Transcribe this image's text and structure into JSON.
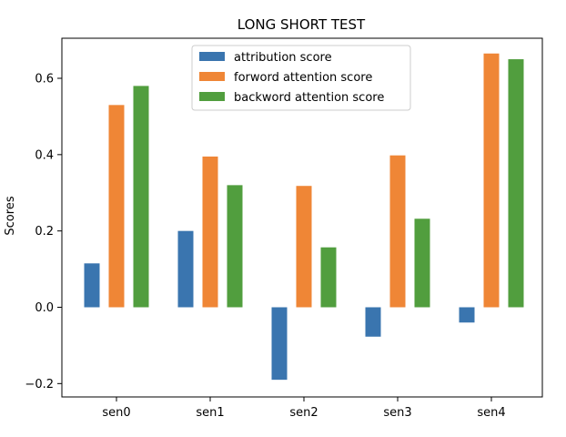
{
  "chart_data": {
    "type": "bar",
    "title": "LONG SHORT TEST",
    "xlabel": "",
    "ylabel": "Scores",
    "categories": [
      "sen0",
      "sen1",
      "sen2",
      "sen3",
      "sen4"
    ],
    "ylim": [
      -0.235,
      0.705
    ],
    "yticks": [
      -0.2,
      0.0,
      0.2,
      0.4,
      0.6
    ],
    "ytick_labels": [
      "−0.2",
      "0.0",
      "0.2",
      "0.4",
      "0.6"
    ],
    "grid": false,
    "legend_position": "top-center",
    "series": [
      {
        "name": "attribution score",
        "color": "#3a75af",
        "values": [
          0.115,
          0.2,
          -0.19,
          -0.077,
          -0.04
        ]
      },
      {
        "name": "forword attention score",
        "color": "#ef8636",
        "values": [
          0.53,
          0.395,
          0.318,
          0.398,
          0.665
        ]
      },
      {
        "name": "backword attention score",
        "color": "#519e3e",
        "values": [
          0.58,
          0.32,
          0.157,
          0.232,
          0.65
        ]
      }
    ]
  }
}
